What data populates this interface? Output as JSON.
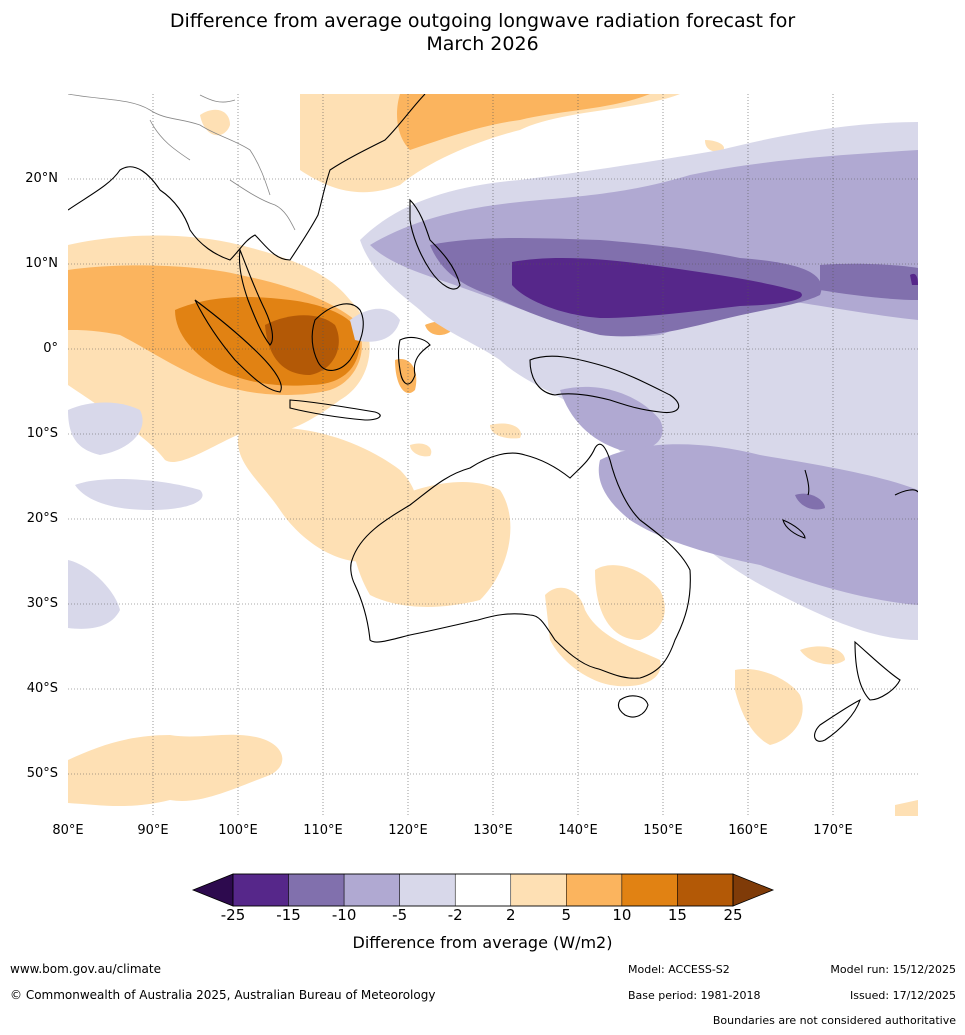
{
  "title_line1": "Difference from average outgoing longwave radiation forecast for",
  "title_line2": "March 2026",
  "lat_labels": [
    "20°N",
    "10°N",
    "0°",
    "10°S",
    "20°S",
    "30°S",
    "40°S",
    "50°S"
  ],
  "lon_labels": [
    "80°E",
    "90°E",
    "100°E",
    "110°E",
    "120°E",
    "130°E",
    "140°E",
    "150°E",
    "160°E",
    "170°E"
  ],
  "colorbar": {
    "title": "Difference from average (W/m2)",
    "ticks": [
      "-25",
      "-15",
      "-10",
      "-5",
      "-2",
      "2",
      "5",
      "10",
      "15",
      "25"
    ],
    "colors": [
      "#2d0a4e",
      "#56278a",
      "#8170ad",
      "#b0a9d2",
      "#d8d8ea",
      "#ffffff",
      "#fee0b4",
      "#fbb45e",
      "#e18213",
      "#b35906",
      "#7f3b08"
    ]
  },
  "footer": {
    "website": "www.bom.gov.au/climate",
    "copyright": "© Commonwealth of Australia 2025, Australian Bureau of Meteorology",
    "model": "Model: ACCESS-S2",
    "base_period": "Base period: 1981-2018",
    "model_run": "Model run: 15/12/2025",
    "issued": "Issued: 17/12/2025",
    "boundaries": "Boundaries are not considered authoritative"
  }
}
